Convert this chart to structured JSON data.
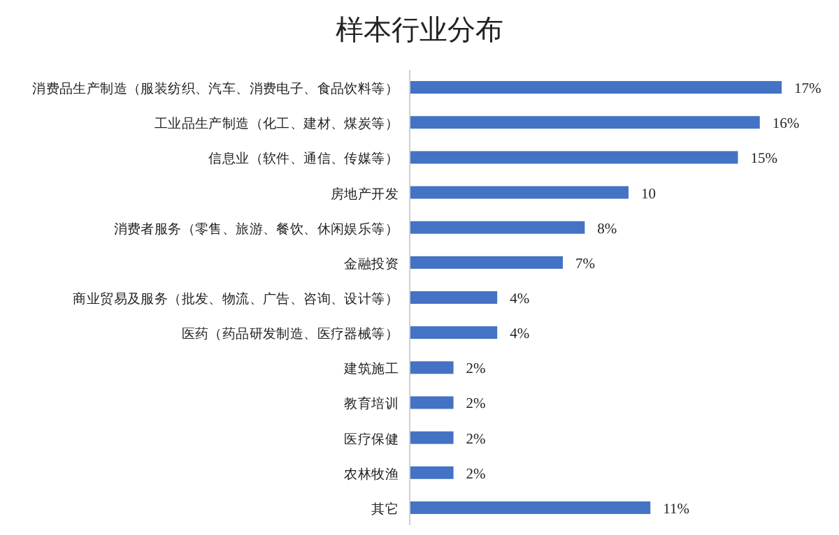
{
  "chart_data": {
    "type": "bar",
    "orientation": "horizontal",
    "title": "样本行业分布",
    "categories": [
      "消费品生产制造（服装纺织、汽车、消费电子、食品饮料等）",
      "工业品生产制造（化工、建材、煤炭等）",
      "信息业（软件、通信、传媒等）",
      "房地产开发",
      "消费者服务（零售、旅游、餐饮、休闲娱乐等）",
      "金融投资",
      "商业贸易及服务（批发、物流、广告、咨询、设计等）",
      "医药（药品研发制造、医疗器械等）",
      "建筑施工",
      "教育培训",
      "医疗保健",
      "农林牧渔",
      "其它"
    ],
    "values": [
      17,
      16,
      15,
      10,
      8,
      7,
      4,
      4,
      2,
      2,
      2,
      2,
      11
    ],
    "value_labels": [
      "17%",
      "16%",
      "15%",
      "10",
      "8%",
      "7%",
      "4%",
      "4%",
      "2%",
      "2%",
      "2%",
      "2%",
      "11%"
    ],
    "color": "#4472c4"
  }
}
